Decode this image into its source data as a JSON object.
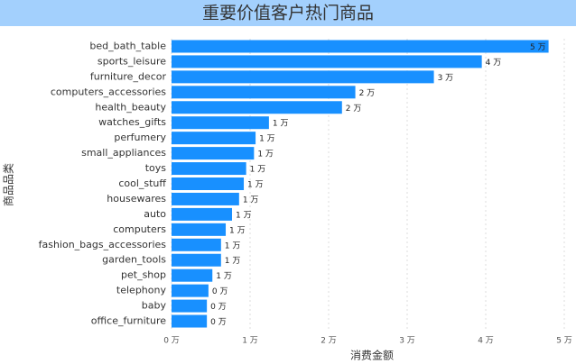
{
  "chart_data": {
    "type": "bar",
    "orientation": "horizontal",
    "title": "重要价值客户热门商品",
    "x_label": "消费金额",
    "y_label": "商品品类",
    "categories": [
      "bed_bath_table",
      "sports_leisure",
      "furniture_decor",
      "computers_accessories",
      "health_beauty",
      "watches_gifts",
      "perfumery",
      "small_appliances",
      "toys",
      "cool_stuff",
      "housewares",
      "auto",
      "computers",
      "fashion_bags_accessories",
      "garden_tools",
      "pet_shop",
      "telephony",
      "baby",
      "office_furniture"
    ],
    "values": [
      4.8,
      3.95,
      3.34,
      2.34,
      2.17,
      1.24,
      1.07,
      1.05,
      0.95,
      0.92,
      0.86,
      0.77,
      0.69,
      0.63,
      0.63,
      0.52,
      0.47,
      0.45,
      0.45
    ],
    "value_labels": [
      "5 万",
      "4 万",
      "3 万",
      "2 万",
      "2 万",
      "1 万",
      "1 万",
      "1 万",
      "1 万",
      "1 万",
      "1 万",
      "1 万",
      "1 万",
      "1 万",
      "1 万",
      "1 万",
      "0 万",
      "0 万",
      "0 万"
    ],
    "color": "#1890ff",
    "xlim": [
      0,
      5
    ],
    "xticks": [
      {
        "value": 0,
        "label": "0 万"
      },
      {
        "value": 1,
        "label": "1 万"
      },
      {
        "value": 2,
        "label": "2 万"
      },
      {
        "value": 3,
        "label": "3 万"
      },
      {
        "value": 4,
        "label": "4 万"
      },
      {
        "value": 5,
        "label": "5 万"
      }
    ],
    "grid": true
  }
}
